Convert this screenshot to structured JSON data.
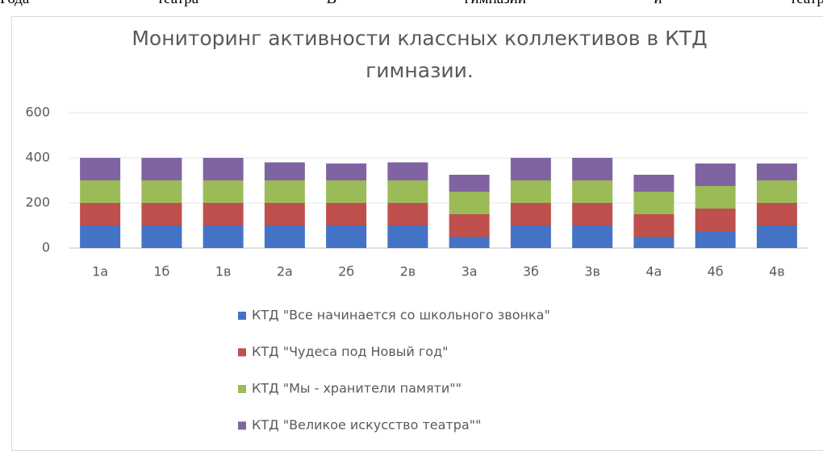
{
  "header": {
    "words": [
      "Года",
      "театра",
      "В",
      "гимназии",
      "и",
      "театрал"
    ]
  },
  "chart_data": {
    "type": "stacked_bar",
    "title": "Мониторинг активности классных коллективов в КТД гимназии.",
    "categories": [
      "1а",
      "1б",
      "1в",
      "2а",
      "2б",
      "2в",
      "3а",
      "3б",
      "3в",
      "4а",
      "4б",
      "4в"
    ],
    "series": [
      {
        "name": "КТД \"Все начинается со школьного звонка\"",
        "color": "#4472c4",
        "values": [
          100,
          100,
          100,
          100,
          100,
          100,
          50,
          100,
          100,
          50,
          75,
          100
        ]
      },
      {
        "name": "КТД \"Чудеса под Новый год\"",
        "color": "#c0504d",
        "values": [
          100,
          100,
          100,
          100,
          100,
          100,
          100,
          100,
          100,
          100,
          100,
          100
        ]
      },
      {
        "name": "КТД \"Мы - хранители памяти\"\"",
        "color": "#9bbb59",
        "values": [
          100,
          100,
          100,
          100,
          100,
          100,
          100,
          100,
          100,
          100,
          100,
          100
        ]
      },
      {
        "name": "КТД \"Великое искусство театра\"\"",
        "color": "#8064a2",
        "values": [
          100,
          100,
          100,
          80,
          75,
          80,
          75,
          100,
          100,
          75,
          100,
          75
        ]
      }
    ],
    "ylim": [
      0,
      600
    ],
    "yticks": [
      0,
      200,
      400,
      600
    ],
    "grid": true,
    "legend": "bottom"
  }
}
